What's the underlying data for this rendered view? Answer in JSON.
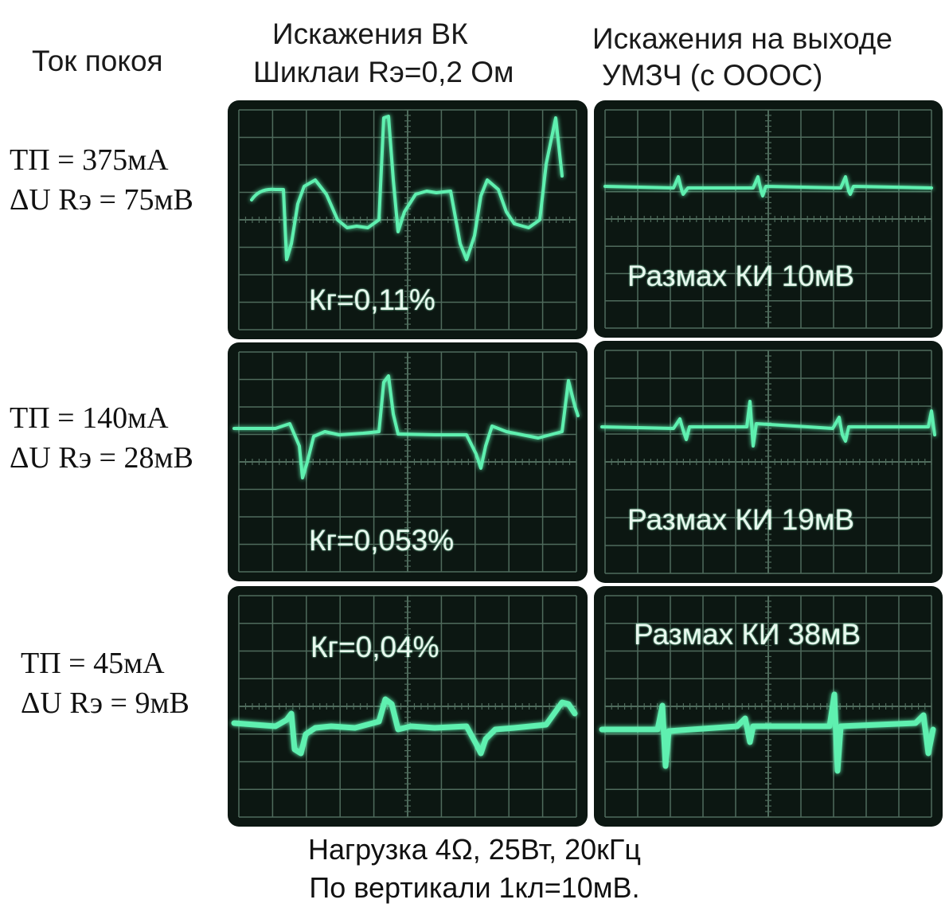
{
  "headers": {
    "col1": "Ток покоя",
    "col2_line1": "Искажения ВК",
    "col2_line2": "Шиклаи Rэ=0,2 Ом",
    "col3_line1": "Искажения на выходе",
    "col3_line2": "УМЗЧ (с ОООС)"
  },
  "rows": [
    {
      "tp": "ТП = 375мА",
      "du": "ΔU Rэ = 75мВ",
      "kg": "Кг=0,11%",
      "ki": "Размах КИ  10мВ"
    },
    {
      "tp": "ТП = 140мА",
      "du": "ΔU Rэ = 28мВ",
      "kg": "Кг=0,053%",
      "ki": "Размах КИ  19мВ"
    },
    {
      "tp": "ТП = 45мА",
      "du": "ΔU Rэ = 9мВ",
      "kg": "Кг=0,04%",
      "ki": "Размах КИ  38мВ"
    }
  ],
  "footer": {
    "line1": "Нагрузка 4Ω, 25Вт, 20кГц",
    "line2": "По вертикали 1кл=10мВ."
  },
  "colors": {
    "trace": "#5ff0b0",
    "grid": "#4f6b5c",
    "screen": "#0c1712"
  }
}
